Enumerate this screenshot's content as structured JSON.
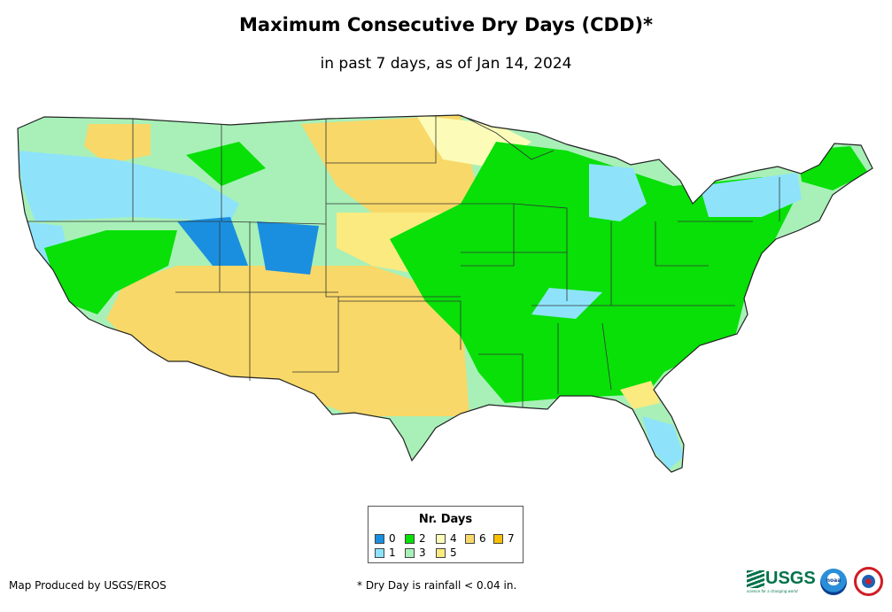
{
  "title": "Maximum Consecutive Dry Days (CDD)*",
  "subtitle": "in past 7 days, as of Jan 14, 2024",
  "legend": {
    "title": "Nr. Days",
    "items": [
      {
        "label": "0",
        "color": "#1a8fe0"
      },
      {
        "label": "1",
        "color": "#8ee3fb"
      },
      {
        "label": "2",
        "color": "#08e008"
      },
      {
        "label": "3",
        "color": "#a8f0b8"
      },
      {
        "label": "4",
        "color": "#fcfcb8"
      },
      {
        "label": "5",
        "color": "#fbea80"
      },
      {
        "label": "6",
        "color": "#f8d868"
      },
      {
        "label": "7",
        "color": "#f8c000"
      }
    ]
  },
  "credit": "Map Produced by USGS/EROS",
  "footnote": "* Dry Day is rainfall < 0.04 in.",
  "logos": {
    "usgs": "USGS",
    "usgs_tagline": "science for a changing world",
    "noaa": "noaa"
  },
  "map": {
    "region": "Contiguous United States",
    "colors": {
      "land_outline": "#222222",
      "state_border": "#333333"
    }
  }
}
